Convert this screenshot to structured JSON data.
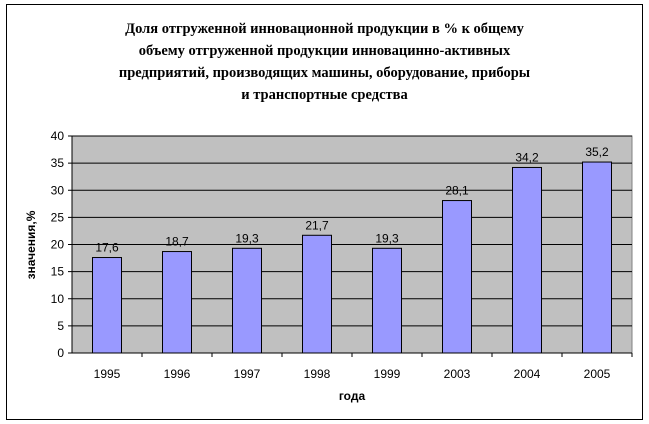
{
  "chart_data": {
    "type": "bar",
    "title": "Доля отгруженной инновационной продукции в % к общему\nобъему отгруженной продукции инновацинно-активных\nпредприятий, производящих машины, оборудование, приборы\nи транспортные средства",
    "xlabel": "года",
    "ylabel": "значения,%",
    "categories": [
      "1995",
      "1996",
      "1997",
      "1998",
      "1999",
      "2003",
      "2004",
      "2005"
    ],
    "values": [
      17.6,
      18.7,
      19.3,
      21.7,
      19.3,
      28.1,
      34.2,
      35.2
    ],
    "value_labels": [
      "17,6",
      "18,7",
      "19,3",
      "21,7",
      "19,3",
      "28,1",
      "34,2",
      "35,2"
    ],
    "ylim": [
      0,
      40
    ],
    "yticks": [
      0,
      5,
      10,
      15,
      20,
      25,
      30,
      35,
      40
    ],
    "grid": true,
    "legend": "none",
    "colors": {
      "bar": "#9999ff",
      "plot_bg": "#c0c0c0",
      "grid": "#000000"
    }
  }
}
